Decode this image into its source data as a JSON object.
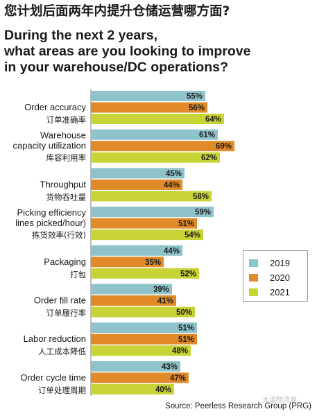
{
  "title_cn": "您计划后面两年内提升仓储运营哪方面?",
  "title_en": [
    "During the next 2 years,",
    "what areas are you looking to improve",
    "in your warehouse/DC operations?"
  ],
  "source": "Source: Peerless Research Group (PRG)",
  "watermark": "大道物流观",
  "colors": {
    "2019": "#8fc3cb",
    "2020": "#e08a2a",
    "2021": "#c8d435",
    "axis": "#777777"
  },
  "chart_data": {
    "type": "bar",
    "orientation": "horizontal",
    "value_suffix": "%",
    "categories": [
      {
        "en": [
          "Order accuracy"
        ],
        "cn": "订单准确率"
      },
      {
        "en": [
          "Warehouse",
          "capacity utilization"
        ],
        "cn": "库容利用率"
      },
      {
        "en": [
          "Throughput"
        ],
        "cn": "货物吞吐量"
      },
      {
        "en": [
          "Picking efficiency",
          "lines picked/hour)"
        ],
        "cn": "拣货效率(行效)"
      },
      {
        "en": [
          "Packaging"
        ],
        "cn": "打包"
      },
      {
        "en": [
          "Order fill rate"
        ],
        "cn": "订单履行率"
      },
      {
        "en": [
          "Labor reduction"
        ],
        "cn": "人工成本降低"
      },
      {
        "en": [
          "Order cycle time"
        ],
        "cn": "订单处理周期"
      }
    ],
    "series": [
      {
        "name": "2019",
        "values": [
          55,
          61,
          45,
          59,
          44,
          39,
          51,
          43
        ]
      },
      {
        "name": "2020",
        "values": [
          56,
          69,
          44,
          51,
          35,
          41,
          51,
          47
        ]
      },
      {
        "name": "2021",
        "values": [
          64,
          62,
          58,
          54,
          52,
          50,
          48,
          40
        ]
      }
    ],
    "legend_position": "right"
  }
}
